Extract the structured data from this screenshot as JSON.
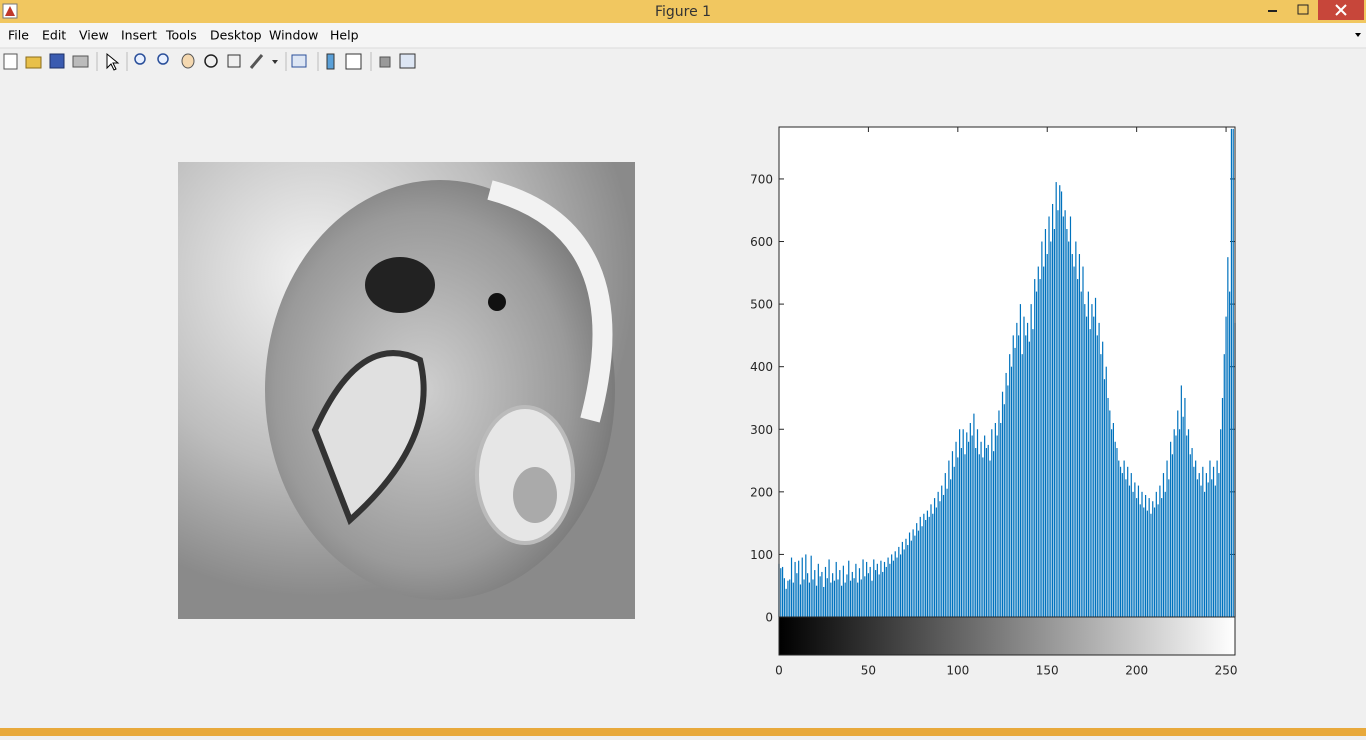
{
  "window": {
    "title": "Figure 1"
  },
  "menu": [
    "File",
    "Edit",
    "View",
    "Insert",
    "Tools",
    "Desktop",
    "Window",
    "Help"
  ],
  "chart_data": {
    "type": "bar",
    "color": "#0072bd",
    "x": [
      0,
      1,
      2,
      3,
      4,
      5,
      6,
      7,
      8,
      9,
      10,
      11,
      12,
      13,
      14,
      15,
      16,
      17,
      18,
      19,
      20,
      21,
      22,
      23,
      24,
      25,
      26,
      27,
      28,
      29,
      30,
      31,
      32,
      33,
      34,
      35,
      36,
      37,
      38,
      39,
      40,
      41,
      42,
      43,
      44,
      45,
      46,
      47,
      48,
      49,
      50,
      51,
      52,
      53,
      54,
      55,
      56,
      57,
      58,
      59,
      60,
      61,
      62,
      63,
      64,
      65,
      66,
      67,
      68,
      69,
      70,
      71,
      72,
      73,
      74,
      75,
      76,
      77,
      78,
      79,
      80,
      81,
      82,
      83,
      84,
      85,
      86,
      87,
      88,
      89,
      90,
      91,
      92,
      93,
      94,
      95,
      96,
      97,
      98,
      99,
      100,
      101,
      102,
      103,
      104,
      105,
      106,
      107,
      108,
      109,
      110,
      111,
      112,
      113,
      114,
      115,
      116,
      117,
      118,
      119,
      120,
      121,
      122,
      123,
      124,
      125,
      126,
      127,
      128,
      129,
      130,
      131,
      132,
      133,
      134,
      135,
      136,
      137,
      138,
      139,
      140,
      141,
      142,
      143,
      144,
      145,
      146,
      147,
      148,
      149,
      150,
      151,
      152,
      153,
      154,
      155,
      156,
      157,
      158,
      159,
      160,
      161,
      162,
      163,
      164,
      165,
      166,
      167,
      168,
      169,
      170,
      171,
      172,
      173,
      174,
      175,
      176,
      177,
      178,
      179,
      180,
      181,
      182,
      183,
      184,
      185,
      186,
      187,
      188,
      189,
      190,
      191,
      192,
      193,
      194,
      195,
      196,
      197,
      198,
      199,
      200,
      201,
      202,
      203,
      204,
      205,
      206,
      207,
      208,
      209,
      210,
      211,
      212,
      213,
      214,
      215,
      216,
      217,
      218,
      219,
      220,
      221,
      222,
      223,
      224,
      225,
      226,
      227,
      228,
      229,
      230,
      231,
      232,
      233,
      234,
      235,
      236,
      237,
      238,
      239,
      240,
      241,
      242,
      243,
      244,
      245,
      246,
      247,
      248,
      249,
      250,
      251,
      252,
      253,
      254,
      255
    ],
    "values": [
      85,
      78,
      80,
      62,
      45,
      58,
      60,
      95,
      55,
      88,
      70,
      90,
      52,
      95,
      60,
      100,
      70,
      55,
      98,
      60,
      75,
      50,
      85,
      65,
      72,
      48,
      80,
      62,
      92,
      55,
      70,
      58,
      88,
      60,
      75,
      50,
      82,
      55,
      68,
      90,
      58,
      72,
      62,
      85,
      55,
      78,
      60,
      92,
      65,
      88,
      70,
      80,
      58,
      92,
      75,
      85,
      68,
      90,
      72,
      88,
      80,
      95,
      85,
      100,
      90,
      105,
      95,
      112,
      100,
      120,
      108,
      125,
      115,
      135,
      122,
      140,
      130,
      150,
      138,
      160,
      145,
      165,
      155,
      170,
      160,
      180,
      165,
      190,
      175,
      200,
      185,
      210,
      195,
      230,
      205,
      250,
      220,
      265,
      240,
      280,
      255,
      300,
      270,
      300,
      260,
      295,
      280,
      310,
      290,
      325,
      270,
      300,
      260,
      280,
      255,
      290,
      270,
      275,
      250,
      300,
      265,
      310,
      290,
      330,
      310,
      360,
      340,
      390,
      370,
      420,
      400,
      450,
      430,
      470,
      450,
      500,
      420,
      480,
      450,
      470,
      440,
      500,
      460,
      540,
      520,
      560,
      540,
      600,
      560,
      620,
      580,
      640,
      600,
      660,
      620,
      695,
      650,
      690,
      680,
      640,
      650,
      620,
      600,
      640,
      580,
      560,
      600,
      540,
      580,
      520,
      560,
      500,
      480,
      520,
      460,
      500,
      480,
      510,
      450,
      470,
      420,
      440,
      380,
      400,
      350,
      330,
      300,
      310,
      280,
      270,
      250,
      240,
      230,
      250,
      220,
      240,
      210,
      230,
      200,
      215,
      190,
      210,
      180,
      200,
      175,
      195,
      170,
      190,
      165,
      185,
      175,
      200,
      180,
      210,
      190,
      230,
      200,
      250,
      220,
      280,
      260,
      300,
      290,
      330,
      300,
      370,
      320,
      350,
      290,
      300,
      260,
      270,
      240,
      250,
      220,
      230,
      210,
      240,
      200,
      230,
      215,
      250,
      220,
      240,
      210,
      250,
      230,
      300,
      350,
      420,
      480,
      575,
      520,
      780,
      780,
      470
    ],
    "xlim": [
      0,
      255
    ],
    "xticks": [
      0,
      50,
      100,
      150,
      200,
      250
    ],
    "ylim": [
      0,
      783
    ],
    "yticks": [
      0,
      100,
      200,
      300,
      400,
      500,
      600,
      700
    ]
  }
}
